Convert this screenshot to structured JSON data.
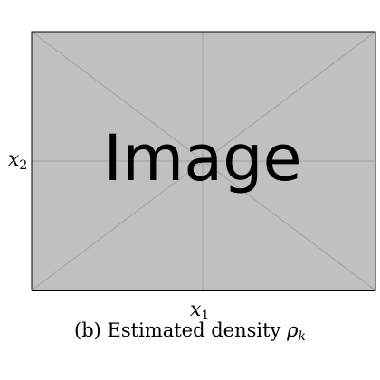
{
  "figure": {
    "placeholder": {
      "text": "Image",
      "fill_color": "#c0c0c0",
      "line_color": "#a0a0a0",
      "border_color": "#000000",
      "text_color": "#000000"
    },
    "axes": {
      "y_symbol": "x",
      "y_subscript": "2",
      "x_symbol": "x",
      "x_subscript": "1"
    },
    "caption": {
      "prefix": "(b) Estimated density ",
      "symbol": "ρ",
      "subscript": "k"
    }
  }
}
